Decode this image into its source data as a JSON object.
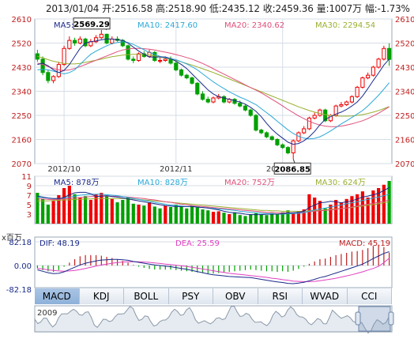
{
  "header": {
    "date": "2013/01/04",
    "open": "开:2516.58",
    "high": "高:2518.90",
    "low": "低:2435.12",
    "close": "收:2459.36",
    "volume": "量:1007万",
    "change": "幅:-1.73%"
  },
  "tabs": [
    {
      "label": "MACD",
      "active": true
    },
    {
      "label": "KDJ"
    },
    {
      "label": "BOLL"
    },
    {
      "label": "PSY"
    },
    {
      "label": "OBV"
    },
    {
      "label": "RSI"
    },
    {
      "label": "WVAD"
    },
    {
      "label": "CCI"
    }
  ],
  "colors": {
    "up": "#f00000",
    "down": "#00a000",
    "ma5": "#1a2a8a",
    "ma10": "#2aa8d8",
    "ma20": "#e0507a",
    "ma30": "#9ab030",
    "dif": "#1a2a8a",
    "dea": "#e040c0",
    "grid": "#d6dde6"
  },
  "chart_data": [
    {
      "type": "candlestick",
      "name": "price",
      "legend": [
        {
          "label": "MA5: 2467.95",
          "color": "#1a2a8a"
        },
        {
          "label": "MA10: 2417.60",
          "color": "#2aa8d8"
        },
        {
          "label": "MA20: 2340.62",
          "color": "#e0507a"
        },
        {
          "label": "MA30: 2294.54",
          "color": "#9ab030"
        }
      ],
      "ylim": [
        2070,
        2610
      ],
      "yticks": [
        2610,
        2520,
        2430,
        2340,
        2250,
        2160,
        2070
      ],
      "xticklabels": [
        {
          "index": 5,
          "label": "2012/10"
        },
        {
          "index": 26,
          "label": "2012/11"
        },
        {
          "index": 46,
          "label": "2012/12"
        }
      ],
      "annotations": [
        {
          "index": 13,
          "value": 2569.29,
          "label": "2569.29"
        },
        {
          "index": 48,
          "value": 2086.85,
          "label": "2086.85"
        }
      ],
      "open": [
        2480,
        2460,
        2410,
        2380,
        2395,
        2440,
        2500,
        2530,
        2520,
        2535,
        2510,
        2525,
        2540,
        2553,
        2520,
        2535,
        2530,
        2510,
        2460,
        2455,
        2480,
        2470,
        2485,
        2455,
        2455,
        2460,
        2445,
        2420,
        2400,
        2390,
        2370,
        2330,
        2310,
        2300,
        2315,
        2320,
        2300,
        2310,
        2295,
        2285,
        2270,
        2250,
        2195,
        2185,
        2170,
        2160,
        2140,
        2130,
        2110,
        2155,
        2185,
        2200,
        2240,
        2250,
        2270,
        2230,
        2250,
        2285,
        2290,
        2300,
        2320,
        2355,
        2390,
        2400,
        2430,
        2460,
        2500
      ],
      "close": [
        2460,
        2410,
        2380,
        2395,
        2440,
        2500,
        2530,
        2520,
        2535,
        2510,
        2525,
        2540,
        2553,
        2520,
        2535,
        2530,
        2510,
        2460,
        2455,
        2480,
        2470,
        2485,
        2455,
        2455,
        2460,
        2445,
        2420,
        2400,
        2390,
        2370,
        2330,
        2310,
        2300,
        2315,
        2320,
        2300,
        2310,
        2295,
        2285,
        2270,
        2250,
        2195,
        2185,
        2170,
        2160,
        2140,
        2130,
        2110,
        2155,
        2185,
        2200,
        2240,
        2250,
        2270,
        2230,
        2250,
        2285,
        2290,
        2300,
        2320,
        2355,
        2390,
        2400,
        2430,
        2460,
        2500,
        2459
      ],
      "high": [
        2495,
        2470,
        2420,
        2400,
        2450,
        2510,
        2545,
        2540,
        2545,
        2540,
        2535,
        2550,
        2569,
        2555,
        2545,
        2545,
        2535,
        2515,
        2470,
        2485,
        2490,
        2495,
        2490,
        2465,
        2470,
        2470,
        2450,
        2425,
        2405,
        2395,
        2375,
        2340,
        2320,
        2320,
        2330,
        2325,
        2315,
        2315,
        2305,
        2290,
        2275,
        2255,
        2200,
        2190,
        2175,
        2165,
        2145,
        2135,
        2160,
        2190,
        2210,
        2245,
        2260,
        2275,
        2275,
        2255,
        2290,
        2300,
        2305,
        2325,
        2360,
        2395,
        2410,
        2435,
        2465,
        2510,
        2519
      ],
      "low": [
        2450,
        2400,
        2370,
        2370,
        2390,
        2435,
        2495,
        2510,
        2515,
        2505,
        2505,
        2520,
        2535,
        2515,
        2515,
        2525,
        2505,
        2455,
        2445,
        2450,
        2465,
        2465,
        2450,
        2445,
        2450,
        2440,
        2415,
        2395,
        2385,
        2365,
        2325,
        2305,
        2295,
        2295,
        2310,
        2295,
        2295,
        2290,
        2280,
        2265,
        2245,
        2190,
        2180,
        2165,
        2155,
        2135,
        2125,
        2105,
        2087,
        2150,
        2180,
        2195,
        2235,
        2245,
        2225,
        2225,
        2245,
        2280,
        2285,
        2295,
        2315,
        2350,
        2385,
        2395,
        2425,
        2455,
        2435
      ],
      "ma5": [
        2440,
        2445,
        2435,
        2420,
        2410,
        2418,
        2440,
        2470,
        2500,
        2520,
        2525,
        2528,
        2532,
        2535,
        2535,
        2532,
        2530,
        2520,
        2505,
        2490,
        2478,
        2468,
        2468,
        2468,
        2468,
        2462,
        2452,
        2440,
        2425,
        2405,
        2385,
        2365,
        2345,
        2330,
        2320,
        2315,
        2310,
        2305,
        2300,
        2292,
        2280,
        2265,
        2245,
        2220,
        2198,
        2180,
        2165,
        2150,
        2142,
        2145,
        2155,
        2170,
        2190,
        2215,
        2235,
        2245,
        2255,
        2262,
        2272,
        2285,
        2300,
        2322,
        2350,
        2380,
        2408,
        2438,
        2460
      ],
      "ma10": [
        2420,
        2422,
        2420,
        2415,
        2410,
        2405,
        2410,
        2420,
        2440,
        2460,
        2478,
        2490,
        2500,
        2510,
        2518,
        2522,
        2525,
        2522,
        2515,
        2505,
        2495,
        2485,
        2478,
        2470,
        2465,
        2462,
        2458,
        2450,
        2442,
        2432,
        2420,
        2405,
        2390,
        2375,
        2362,
        2350,
        2338,
        2328,
        2318,
        2310,
        2300,
        2290,
        2275,
        2260,
        2245,
        2228,
        2212,
        2196,
        2182,
        2172,
        2165,
        2162,
        2164,
        2170,
        2180,
        2192,
        2205,
        2218,
        2230,
        2242,
        2255,
        2268,
        2285,
        2305,
        2325,
        2348,
        2372
      ],
      "ma20": [
        2445,
        2440,
        2432,
        2425,
        2420,
        2418,
        2420,
        2425,
        2432,
        2440,
        2448,
        2456,
        2464,
        2472,
        2480,
        2488,
        2494,
        2498,
        2500,
        2500,
        2499,
        2497,
        2494,
        2490,
        2486,
        2482,
        2477,
        2472,
        2466,
        2460,
        2452,
        2444,
        2434,
        2424,
        2414,
        2404,
        2394,
        2384,
        2374,
        2364,
        2354,
        2344,
        2334,
        2322,
        2310,
        2298,
        2285,
        2272,
        2260,
        2248,
        2238,
        2228,
        2220,
        2214,
        2210,
        2208,
        2208,
        2210,
        2214,
        2218,
        2224,
        2230,
        2238,
        2248,
        2258,
        2270,
        2282
      ],
      "ma30": [
        2470,
        2465,
        2458,
        2452,
        2448,
        2444,
        2442,
        2442,
        2444,
        2448,
        2452,
        2456,
        2460,
        2465,
        2469,
        2472,
        2475,
        2477,
        2478,
        2478,
        2477,
        2475,
        2472,
        2468,
        2464,
        2460,
        2455,
        2450,
        2444,
        2438,
        2431,
        2424,
        2417,
        2410,
        2402,
        2394,
        2386,
        2378,
        2370,
        2362,
        2354,
        2346,
        2338,
        2330,
        2322,
        2314,
        2306,
        2298,
        2290,
        2282,
        2275,
        2268,
        2262,
        2257,
        2253,
        2250,
        2248,
        2247,
        2247,
        2248,
        2250,
        2253,
        2257,
        2262,
        2268,
        2275,
        2283
      ]
    },
    {
      "type": "bar",
      "name": "volume",
      "legend": [
        {
          "label": "MA5: 878万",
          "color": "#1a2a8a"
        },
        {
          "label": "MA10: 828万",
          "color": "#2aa8d8"
        },
        {
          "label": "MA20: 752万",
          "color": "#e0507a"
        },
        {
          "label": "MA30: 624万",
          "color": "#9ab030"
        }
      ],
      "ylim": [
        1,
        11
      ],
      "yticks": [
        11,
        9,
        7,
        5,
        3
      ],
      "values": [
        7.5,
        6.2,
        5.0,
        5.8,
        7.0,
        8.5,
        9.0,
        7.2,
        6.5,
        6.8,
        6.0,
        7.2,
        7.5,
        6.8,
        6.2,
        5.5,
        6.0,
        6.5,
        5.2,
        5.0,
        4.8,
        5.5,
        4.6,
        4.2,
        4.8,
        4.5,
        5.0,
        4.6,
        4.2,
        4.8,
        4.5,
        4.0,
        3.8,
        3.5,
        3.6,
        3.3,
        3.0,
        3.4,
        2.8,
        2.6,
        3.0,
        3.2,
        3.0,
        2.8,
        3.2,
        3.0,
        3.4,
        3.8,
        3.2,
        3.6,
        4.0,
        7.2,
        6.5,
        5.8,
        4.2,
        5.0,
        6.0,
        5.5,
        6.2,
        6.8,
        7.2,
        7.8,
        6.5,
        8.0,
        8.5,
        9.2,
        10.0
      ],
      "up": [
        false,
        false,
        false,
        true,
        true,
        true,
        true,
        false,
        true,
        false,
        true,
        true,
        true,
        false,
        true,
        false,
        false,
        false,
        false,
        true,
        false,
        true,
        false,
        false,
        true,
        false,
        false,
        false,
        false,
        false,
        false,
        false,
        false,
        true,
        true,
        false,
        true,
        false,
        false,
        false,
        false,
        false,
        false,
        false,
        false,
        false,
        false,
        false,
        true,
        true,
        true,
        true,
        true,
        true,
        false,
        true,
        true,
        true,
        true,
        true,
        true,
        true,
        true,
        true,
        true,
        true,
        false
      ],
      "ma5": [
        6.8,
        6.6,
        6.4,
        6.3,
        6.3,
        6.5,
        7.1,
        7.5,
        7.6,
        7.6,
        7.3,
        6.7,
        6.8,
        6.9,
        6.7,
        6.6,
        6.4,
        6.2,
        6.0,
        5.8,
        5.6,
        5.4,
        5.2,
        5.0,
        4.8,
        4.7,
        4.6,
        4.6,
        4.6,
        4.6,
        4.5,
        4.4,
        4.3,
        4.1,
        3.9,
        3.6,
        3.4,
        3.3,
        3.2,
        3.0,
        2.9,
        2.9,
        2.9,
        3.0,
        3.0,
        3.0,
        3.1,
        3.2,
        3.3,
        3.4,
        3.6,
        4.4,
        4.9,
        5.4,
        5.5,
        5.7,
        5.6,
        5.4,
        5.6,
        5.8,
        6.2,
        6.6,
        6.8,
        7.1,
        7.4,
        8.0,
        8.6
      ],
      "ma10": [
        6.6,
        6.5,
        6.4,
        6.3,
        6.3,
        6.4,
        6.6,
        6.8,
        7.0,
        7.1,
        7.2,
        7.2,
        7.2,
        7.1,
        7.0,
        6.9,
        6.7,
        6.5,
        6.3,
        6.1,
        5.9,
        5.7,
        5.5,
        5.3,
        5.1,
        4.9,
        4.8,
        4.7,
        4.6,
        4.6,
        4.5,
        4.4,
        4.3,
        4.2,
        4.1,
        4.0,
        3.9,
        3.8,
        3.6,
        3.5,
        3.4,
        3.3,
        3.2,
        3.1,
        3.1,
        3.0,
        3.0,
        3.1,
        3.1,
        3.2,
        3.3,
        3.6,
        3.9,
        4.1,
        4.3,
        4.5,
        4.7,
        4.9,
        5.2,
        5.4,
        5.6,
        5.9,
        6.1,
        6.4,
        6.6,
        6.9,
        7.2
      ],
      "ma20": [
        6.2,
        6.2,
        6.1,
        6.1,
        6.1,
        6.2,
        6.3,
        6.4,
        6.5,
        6.6,
        6.7,
        6.8,
        6.8,
        6.8,
        6.8,
        6.8,
        6.7,
        6.6,
        6.5,
        6.4,
        6.3,
        6.1,
        6.0,
        5.8,
        5.6,
        5.5,
        5.3,
        5.1,
        5.0,
        4.8,
        4.7,
        4.6,
        4.5,
        4.4,
        4.3,
        4.2,
        4.1,
        4.0,
        3.9,
        3.8,
        3.7,
        3.6,
        3.5,
        3.4,
        3.4,
        3.3,
        3.3,
        3.3,
        3.3,
        3.3,
        3.4,
        3.5,
        3.6,
        3.7,
        3.8,
        3.9,
        4.0,
        4.2,
        4.3,
        4.5,
        4.7,
        4.9,
        5.1,
        5.3,
        5.5,
        5.7,
        6.0
      ],
      "ma30": [
        5.8,
        5.8,
        5.8,
        5.9,
        5.9,
        6.0,
        6.0,
        6.1,
        6.1,
        6.2,
        6.2,
        6.3,
        6.3,
        6.3,
        6.3,
        6.3,
        6.3,
        6.2,
        6.2,
        6.1,
        6.0,
        5.9,
        5.8,
        5.7,
        5.6,
        5.5,
        5.4,
        5.3,
        5.2,
        5.1,
        5.0,
        4.9,
        4.8,
        4.7,
        4.6,
        4.5,
        4.4,
        4.3,
        4.2,
        4.1,
        4.0,
        3.9,
        3.8,
        3.8,
        3.7,
        3.7,
        3.6,
        3.6,
        3.6,
        3.6,
        3.6,
        3.7,
        3.7,
        3.8,
        3.9,
        4.0,
        4.1,
        4.2,
        4.3,
        4.4,
        4.6,
        4.7,
        4.9,
        5.0,
        5.2,
        5.4,
        5.6
      ]
    },
    {
      "type": "macd",
      "name": "MACD",
      "unitlabel": "x百万",
      "legend": [
        {
          "label": "DIF: 48.19",
          "color": "#1a2a8a"
        },
        {
          "label": "DEA: 25.59",
          "color": "#e040c0"
        },
        {
          "label": "MACD: 45.19",
          "color": "#c02020"
        }
      ],
      "ylim": [
        -82.18,
        82.18
      ],
      "yticks": [
        {
          "value": 82.18,
          "label": "82.18"
        },
        {
          "value": 0,
          "label": "0.00"
        },
        {
          "value": -82.18,
          "label": "-82.18"
        }
      ],
      "dif": [
        -15,
        -20,
        -25,
        -28,
        -27,
        -22,
        -14,
        -6,
        2,
        8,
        12,
        16,
        19,
        20,
        21,
        21,
        20,
        18,
        14,
        11,
        8,
        5,
        2,
        0,
        -2,
        -4,
        -7,
        -10,
        -13,
        -17,
        -21,
        -25,
        -29,
        -32,
        -34,
        -36,
        -38,
        -39,
        -40,
        -41,
        -42,
        -45,
        -48,
        -51,
        -54,
        -57,
        -59,
        -62,
        -63,
        -61,
        -58,
        -53,
        -48,
        -42,
        -38,
        -32,
        -26,
        -20,
        -14,
        -8,
        -2,
        5,
        14,
        24,
        33,
        42,
        48
      ],
      "dea": [
        -10,
        -12,
        -15,
        -17,
        -19,
        -20,
        -19,
        -17,
        -14,
        -10,
        -6,
        -2,
        2,
        5,
        8,
        10,
        12,
        13,
        13,
        13,
        12,
        11,
        9,
        7,
        5,
        3,
        1,
        -1,
        -3,
        -6,
        -9,
        -12,
        -15,
        -18,
        -21,
        -24,
        -27,
        -29,
        -31,
        -33,
        -35,
        -37,
        -39,
        -41,
        -44,
        -46,
        -49,
        -51,
        -54,
        -55,
        -56,
        -56,
        -55,
        -53,
        -50,
        -47,
        -44,
        -40,
        -36,
        -32,
        -27,
        -22,
        -16,
        -10,
        -3,
        10,
        25.59
      ]
    },
    {
      "type": "area",
      "name": "overview",
      "year_label": "2009"
    }
  ]
}
